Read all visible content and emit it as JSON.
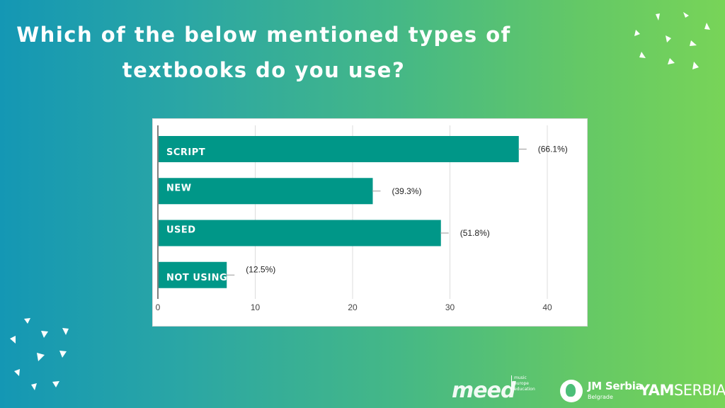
{
  "title": {
    "line1": "Which of the below mentioned types of",
    "line2": "textbooks do you use?"
  },
  "chart_data": {
    "type": "bar",
    "orientation": "horizontal",
    "categories": [
      "SCRIPT",
      "NEW",
      "USED",
      "NOT USING"
    ],
    "values": [
      37,
      22,
      29,
      7
    ],
    "data_labels": [
      "(66.1%)",
      "(39.3%)",
      "(51.8%)",
      "(12.5%)"
    ],
    "xlim": [
      0,
      40
    ],
    "xticks": [
      "0",
      "10",
      "20",
      "30",
      "40"
    ],
    "grid": true,
    "bar_color": "#009788",
    "title": "",
    "xlabel": "",
    "ylabel": ""
  },
  "logos": {
    "meed": "meed",
    "meed_sub": [
      "music",
      "europe",
      "education"
    ],
    "jm": "JM Serbia",
    "jm_sub": "Belgrade",
    "yam_bold": "YAM",
    "yam_light": "SERBIA"
  },
  "colors": {
    "bg_left": "#1497b4",
    "bg_right": "#78d458",
    "text": "#ffffff"
  }
}
